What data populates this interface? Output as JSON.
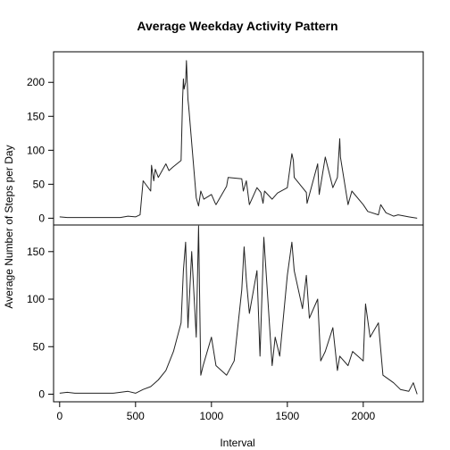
{
  "chart_data": {
    "type": "line",
    "title": "Average Weekday Activity Pattern",
    "xlabel": "Interval",
    "ylabel": "Average Number of Steps per Day",
    "xlim": [
      -40,
      2395
    ],
    "xticks": [
      0,
      500,
      1000,
      1500,
      2000
    ],
    "series_color": "#222222",
    "panels": [
      {
        "ylim": [
          -10,
          245
        ],
        "yticks": [
          0,
          50,
          100,
          150,
          200
        ],
        "x": [
          0,
          50,
          100,
          150,
          200,
          250,
          300,
          350,
          400,
          450,
          500,
          530,
          550,
          600,
          605,
          620,
          630,
          650,
          700,
          720,
          745,
          800,
          810,
          815,
          820,
          830,
          835,
          845,
          850,
          900,
          915,
          930,
          950,
          1000,
          1025,
          1030,
          1100,
          1110,
          1200,
          1210,
          1230,
          1250,
          1300,
          1325,
          1340,
          1350,
          1400,
          1435,
          1500,
          1530,
          1540,
          1545,
          1600,
          1625,
          1630,
          1700,
          1710,
          1750,
          1800,
          1830,
          1845,
          1850,
          1900,
          1925,
          2000,
          2030,
          2100,
          2115,
          2150,
          2200,
          2230,
          2300,
          2355
        ],
        "y": [
          2,
          1,
          1,
          1,
          1,
          1,
          1,
          1,
          1,
          3,
          2,
          5,
          55,
          40,
          78,
          55,
          72,
          60,
          80,
          70,
          75,
          85,
          175,
          205,
          190,
          200,
          232,
          175,
          165,
          30,
          18,
          40,
          28,
          35,
          22,
          20,
          47,
          60,
          58,
          40,
          55,
          20,
          45,
          38,
          22,
          40,
          28,
          37,
          45,
          95,
          85,
          60,
          45,
          38,
          22,
          80,
          35,
          90,
          45,
          60,
          117,
          90,
          20,
          40,
          20,
          10,
          5,
          20,
          8,
          3,
          5,
          2,
          0
        ]
      },
      {
        "ylim": [
          -8,
          178
        ],
        "yticks": [
          0,
          50,
          100,
          150
        ],
        "x": [
          0,
          50,
          100,
          150,
          200,
          250,
          300,
          350,
          400,
          450,
          500,
          550,
          600,
          650,
          700,
          750,
          800,
          815,
          830,
          845,
          870,
          900,
          915,
          930,
          945,
          1000,
          1030,
          1100,
          1150,
          1200,
          1215,
          1230,
          1250,
          1300,
          1320,
          1345,
          1400,
          1420,
          1450,
          1500,
          1530,
          1545,
          1600,
          1625,
          1645,
          1700,
          1720,
          1750,
          1800,
          1830,
          1845,
          1900,
          1930,
          2000,
          2015,
          2045,
          2100,
          2130,
          2200,
          2245,
          2300,
          2330,
          2355
        ],
        "y": [
          1,
          2,
          1,
          1,
          1,
          1,
          1,
          1,
          2,
          3,
          1,
          5,
          8,
          15,
          25,
          45,
          75,
          130,
          160,
          70,
          150,
          60,
          177,
          20,
          30,
          60,
          30,
          20,
          35,
          110,
          155,
          120,
          85,
          130,
          40,
          165,
          30,
          60,
          40,
          125,
          160,
          130,
          90,
          125,
          80,
          100,
          35,
          45,
          70,
          25,
          40,
          30,
          45,
          35,
          95,
          60,
          75,
          20,
          12,
          5,
          3,
          12,
          0
        ]
      }
    ]
  }
}
